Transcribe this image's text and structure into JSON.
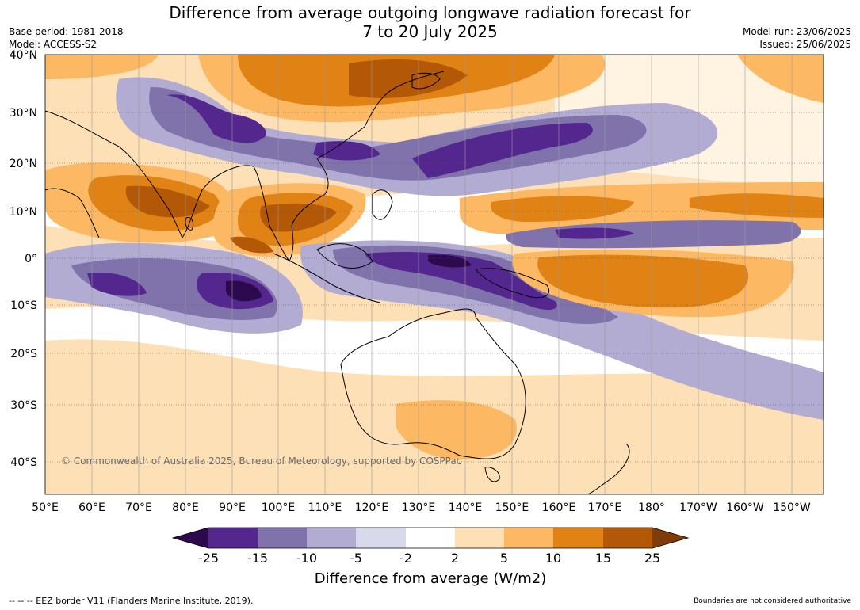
{
  "title_line1": "Difference from average outgoing longwave radiation forecast for",
  "title_line2": "7 to 20 July 2025",
  "base_period": "Base period: 1981-2018",
  "model": "Model: ACCESS-S2",
  "model_run": "Model run: 23/06/2025",
  "issued": "Issued: 25/06/2025",
  "copyright": "© Commonwealth of Australia 2025, Bureau of Meteorology, supported by COSPPac",
  "eez_note": "--  --  -- EEZ border V11 (Flanders Marine Institute, 2019).",
  "boundaries_note": "Boundaries are not considered authoritative",
  "lat_labels": [
    "40°N",
    "30°N",
    "20°N",
    "10°N",
    "0°",
    "10°S",
    "20°S",
    "30°S",
    "40°S"
  ],
  "lon_labels": [
    "50°E",
    "60°E",
    "70°E",
    "80°E",
    "90°E",
    "100°E",
    "110°E",
    "120°E",
    "130°E",
    "140°E",
    "150°E",
    "160°E",
    "170°E",
    "180°",
    "170°W",
    "160°W",
    "150°W"
  ],
  "colorbar": {
    "title": "Difference from average (W/m2)",
    "ticks": [
      "-25",
      "-15",
      "-10",
      "-5",
      "-2",
      "2",
      "5",
      "10",
      "15",
      "25"
    ],
    "colors": [
      "#2d0a4e",
      "#54278f",
      "#8073ac",
      "#b2abd2",
      "#d8daeb",
      "#ffffff",
      "#fee0b6",
      "#fdb863",
      "#e08214",
      "#b35806",
      "#7f3b08"
    ]
  },
  "map_colors": {
    "ocean": "#fee0b6",
    "neutral": "#ffffff",
    "purple_light": "#d8daeb",
    "purple_mid": "#b2abd2",
    "purple_strong": "#8073ac",
    "purple_deep": "#54278f",
    "purple_darkest": "#2d0a4e",
    "orange_light": "#fdb863",
    "orange_mid": "#e08214",
    "orange_dark": "#b35806"
  }
}
